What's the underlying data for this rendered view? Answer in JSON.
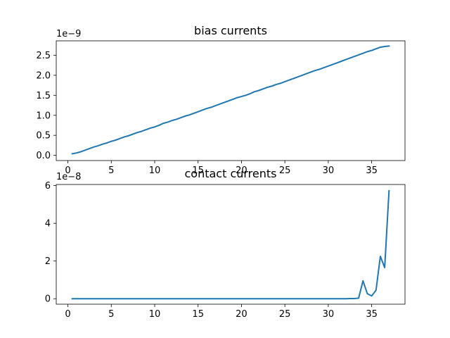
{
  "chart_data": [
    {
      "type": "line",
      "title": "bias currents",
      "xlabel": "",
      "ylabel": "",
      "offset_text": "1e−9",
      "xlim": [
        -1.34,
        38.84
      ],
      "ylim": [
        -1.3e-10,
        2.86e-09
      ],
      "xticks": [
        0,
        5,
        10,
        15,
        20,
        25,
        30,
        35
      ],
      "xtick_labels": [
        "0",
        "5",
        "10",
        "15",
        "20",
        "25",
        "30",
        "35"
      ],
      "yticks": [
        0,
        5e-10,
        1e-09,
        1.5e-09,
        2e-09,
        2.5e-09
      ],
      "ytick_labels": [
        "0.0",
        "0.5",
        "1.0",
        "1.5",
        "2.0",
        "2.5"
      ],
      "grid": false,
      "color": "#1f77b4",
      "x": [
        0.5,
        1,
        1.5,
        2,
        2.5,
        3,
        3.5,
        4,
        4.5,
        5,
        5.5,
        6,
        6.5,
        7,
        7.5,
        8,
        8.5,
        9,
        9.5,
        10,
        10.5,
        11,
        11.5,
        12,
        12.5,
        13,
        13.5,
        14,
        14.5,
        15,
        15.5,
        16,
        16.5,
        17,
        17.5,
        18,
        18.5,
        19,
        19.5,
        20,
        20.5,
        21,
        21.5,
        22,
        22.5,
        23,
        23.5,
        24,
        24.5,
        25,
        25.5,
        26,
        26.5,
        27,
        27.5,
        28,
        28.5,
        29,
        29.5,
        30,
        30.5,
        31,
        31.5,
        32,
        32.5,
        33,
        33.5,
        34,
        34.5,
        35,
        35.5,
        36,
        36.5,
        37
      ],
      "y": [
        4e-11,
        6e-11,
        9e-11,
        1.3e-10,
        1.7e-10,
        2.1e-10,
        2.4e-10,
        2.8e-10,
        3.1e-10,
        3.5e-10,
        3.8e-10,
        4.2e-10,
        4.6e-10,
        4.9e-10,
        5.3e-10,
        5.7e-10,
        6e-10,
        6.4e-10,
        6.8e-10,
        7.1e-10,
        7.5e-10,
        8e-10,
        8.3e-10,
        8.7e-10,
        9e-10,
        9.4e-10,
        9.8e-10,
        1.01e-09,
        1.05e-09,
        1.09e-09,
        1.13e-09,
        1.17e-09,
        1.2e-09,
        1.24e-09,
        1.28e-09,
        1.32e-09,
        1.36e-09,
        1.4e-09,
        1.44e-09,
        1.47e-09,
        1.5e-09,
        1.54e-09,
        1.59e-09,
        1.62e-09,
        1.66e-09,
        1.7e-09,
        1.73e-09,
        1.77e-09,
        1.8e-09,
        1.84e-09,
        1.88e-09,
        1.92e-09,
        1.96e-09,
        2e-09,
        2.04e-09,
        2.08e-09,
        2.12e-09,
        2.15e-09,
        2.19e-09,
        2.23e-09,
        2.27e-09,
        2.31e-09,
        2.35e-09,
        2.39e-09,
        2.43e-09,
        2.47e-09,
        2.51e-09,
        2.55e-09,
        2.59e-09,
        2.62e-09,
        2.66e-09,
        2.7e-09,
        2.72e-09,
        2.73e-09
      ]
    },
    {
      "type": "line",
      "title": "contact currents",
      "xlabel": "",
      "ylabel": "",
      "offset_text": "1e−8",
      "xlim": [
        -1.34,
        38.84
      ],
      "ylim": [
        -2.9e-09,
        6.06e-08
      ],
      "xticks": [
        0,
        5,
        10,
        15,
        20,
        25,
        30,
        35
      ],
      "xtick_labels": [
        "0",
        "5",
        "10",
        "15",
        "20",
        "25",
        "30",
        "35"
      ],
      "yticks": [
        0,
        2e-08,
        4e-08,
        6e-08
      ],
      "ytick_labels": [
        "0",
        "2",
        "4",
        "6"
      ],
      "grid": false,
      "color": "#1f77b4",
      "x": [
        0.5,
        32,
        32.5,
        33,
        33.5,
        34,
        34.5,
        35,
        35.5,
        36,
        36.5,
        37
      ],
      "y": [
        0,
        0,
        1e-10,
        1e-10,
        3e-10,
        9.5e-09,
        2.7e-09,
        1.5e-09,
        4.5e-09,
        2.25e-08,
        1.65e-08,
        5.73e-08
      ]
    }
  ]
}
